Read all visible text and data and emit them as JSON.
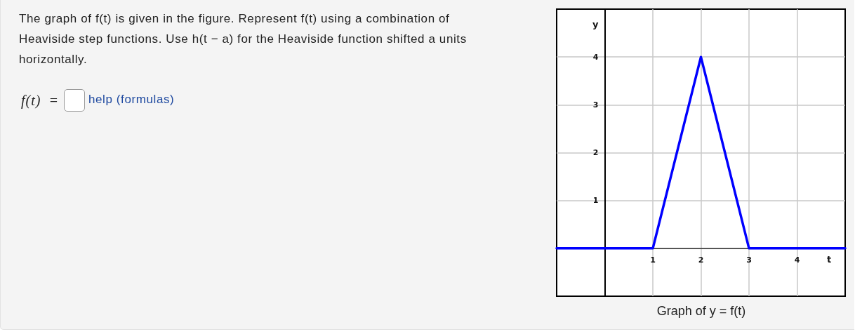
{
  "chart_data": {
    "type": "line",
    "title": "Graph of y = f(t)",
    "xlabel": "t",
    "ylabel": "y",
    "annotations": [
      "The graph of f(t) is given in the figure. Represent f(t) using a combination of Heaviside step functions. Use h(t − a) for the Heaviside function shifted a units horizontally.",
      "f(t) =",
      "help (formulas)"
    ],
    "x": [
      -1,
      1,
      2,
      3,
      5
    ],
    "series": [
      {
        "color": "#0000ff",
        "values": [
          0,
          0,
          4,
          0,
          0
        ]
      }
    ],
    "xlim": [
      -1,
      5
    ],
    "ylim": [
      -1,
      5
    ],
    "xticks": [
      1,
      2,
      3,
      4
    ],
    "yticks": [
      1,
      2,
      3,
      4
    ],
    "grid": true,
    "marker": "none",
    "line_style": "solid"
  }
}
